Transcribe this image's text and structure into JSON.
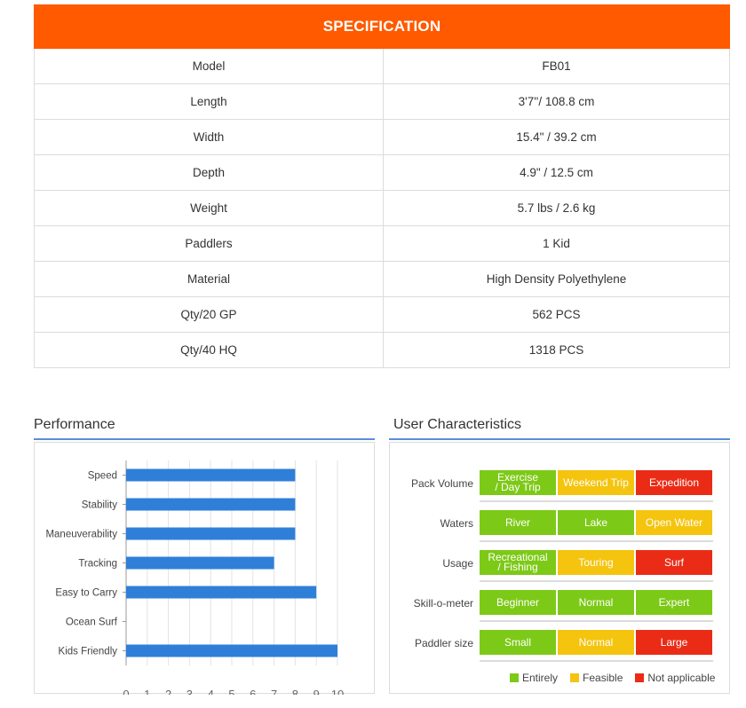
{
  "colors": {
    "accent": "#ff5a00",
    "bar": "#2f7fd9",
    "green": "#7dc917",
    "yellow": "#f4c40f",
    "red": "#ea2c17"
  },
  "spec": {
    "title": "SPECIFICATION",
    "rows": [
      {
        "label": "Model",
        "value": "FB01"
      },
      {
        "label": "Length",
        "value": "3'7''/ 108.8 cm"
      },
      {
        "label": "Width",
        "value": "15.4\" / 39.2 cm"
      },
      {
        "label": "Depth",
        "value": "4.9\" / 12.5 cm"
      },
      {
        "label": "Weight",
        "value": "5.7 lbs / 2.6 kg"
      },
      {
        "label": "Paddlers",
        "value": "1 Kid"
      },
      {
        "label": "Material",
        "value": "High Density Polyethylene"
      },
      {
        "label": "Qty/20 GP",
        "value": "562 PCS"
      },
      {
        "label": "Qty/40 HQ",
        "value": "1318 PCS"
      }
    ]
  },
  "performance": {
    "title": "Performance",
    "chart_data": {
      "type": "bar",
      "orientation": "horizontal",
      "categories": [
        "Speed",
        "Stability",
        "Maneuverability",
        "Tracking",
        "Easy to Carry",
        "Ocean Surf",
        "Kids Friendly"
      ],
      "values": [
        8,
        8,
        8,
        7,
        9,
        0,
        10
      ],
      "xlim": [
        0,
        10
      ],
      "xticks": [
        0,
        1,
        2,
        3,
        4,
        5,
        6,
        7,
        8,
        9,
        10
      ],
      "grid": true
    }
  },
  "user_characteristics": {
    "title": "User Characteristics",
    "rows": [
      {
        "label": "Pack Volume",
        "cells": [
          {
            "text": "Exercise\n/ Day Trip",
            "level": "green"
          },
          {
            "text": "Weekend Trip",
            "level": "yellow"
          },
          {
            "text": "Expedition",
            "level": "red"
          }
        ]
      },
      {
        "label": "Waters",
        "cells": [
          {
            "text": "River",
            "level": "green"
          },
          {
            "text": "Lake",
            "level": "green"
          },
          {
            "text": "Open Water",
            "level": "yellow"
          }
        ]
      },
      {
        "label": "Usage",
        "cells": [
          {
            "text": "Recreational\n/ Fishing",
            "level": "green"
          },
          {
            "text": "Touring",
            "level": "yellow"
          },
          {
            "text": "Surf",
            "level": "red"
          }
        ]
      },
      {
        "label": "Skill-o-meter",
        "cells": [
          {
            "text": "Beginner",
            "level": "green"
          },
          {
            "text": "Normal",
            "level": "green"
          },
          {
            "text": "Expert",
            "level": "green"
          }
        ]
      },
      {
        "label": "Paddler size",
        "cells": [
          {
            "text": "Small",
            "level": "green"
          },
          {
            "text": "Normal",
            "level": "yellow"
          },
          {
            "text": "Large",
            "level": "red"
          }
        ]
      }
    ],
    "legend": [
      {
        "label": "Entirely",
        "level": "green"
      },
      {
        "label": "Feasible",
        "level": "yellow"
      },
      {
        "label": "Not applicable",
        "level": "red"
      }
    ]
  }
}
